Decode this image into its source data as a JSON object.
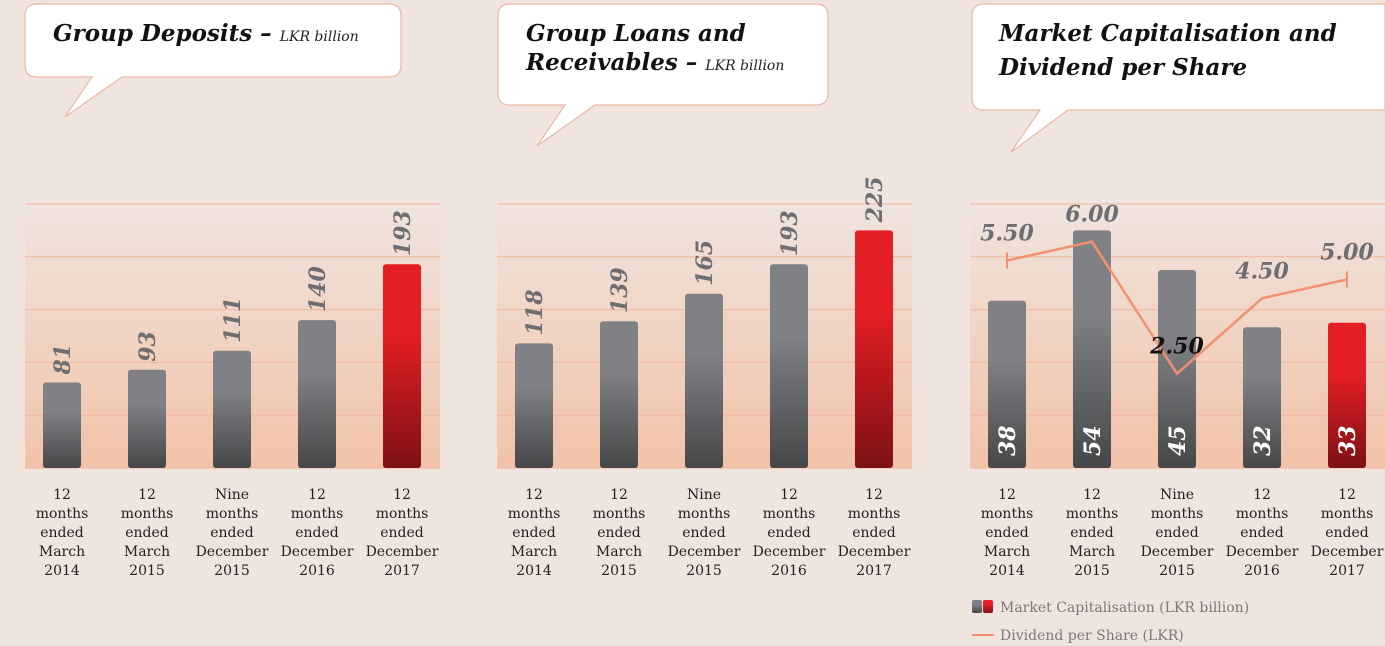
{
  "chart_data": [
    {
      "type": "bar",
      "title": [
        "Group Deposits –"
      ],
      "subtitle": "LKR billion",
      "categories": [
        [
          "12",
          "months",
          "ended",
          "March",
          "2014"
        ],
        [
          "12",
          "months",
          "ended",
          "March",
          "2015"
        ],
        [
          "Nine",
          "months",
          "ended",
          "December",
          "2015"
        ],
        [
          "12",
          "months",
          "ended",
          "December",
          "2016"
        ],
        [
          "12",
          "months",
          "ended",
          "December",
          "2017"
        ]
      ],
      "values": [
        81,
        93,
        111,
        140,
        193
      ],
      "colors": [
        "#808184",
        "#808184",
        "#808184",
        "#808184",
        "#e31e24"
      ],
      "ylim": [
        0,
        250
      ],
      "yticks": [
        0,
        50,
        100,
        150,
        200,
        250
      ],
      "grid": true
    },
    {
      "type": "bar",
      "title": [
        "Group Loans and",
        "Receivables –"
      ],
      "subtitle": "LKR billion",
      "categories": [
        [
          "12",
          "months",
          "ended",
          "March",
          "2014"
        ],
        [
          "12",
          "months",
          "ended",
          "March",
          "2015"
        ],
        [
          "Nine",
          "months",
          "ended",
          "December",
          "2015"
        ],
        [
          "12",
          "months",
          "ended",
          "December",
          "2016"
        ],
        [
          "12",
          "months",
          "ended",
          "December",
          "2017"
        ]
      ],
      "values": [
        118,
        139,
        165,
        193,
        225
      ],
      "colors": [
        "#808184",
        "#808184",
        "#808184",
        "#808184",
        "#e31e24"
      ],
      "ylim": [
        0,
        250
      ],
      "yticks": [
        0,
        50,
        100,
        150,
        200,
        250
      ],
      "grid": true
    },
    {
      "type": "bar_line",
      "title": [
        "Market Capitalisation and",
        "Dividend per Share"
      ],
      "categories": [
        [
          "12",
          "months",
          "ended",
          "March",
          "2014"
        ],
        [
          "12",
          "months",
          "ended",
          "March",
          "2015"
        ],
        [
          "Nine",
          "months",
          "ended",
          "December",
          "2015"
        ],
        [
          "12",
          "months",
          "ended",
          "December",
          "2016"
        ],
        [
          "12",
          "months",
          "ended",
          "December",
          "2017"
        ]
      ],
      "series": [
        {
          "name": "Market Capitalisation (LKR billion)",
          "type": "bar",
          "colors": [
            "#808184",
            "#808184",
            "#808184",
            "#808184",
            "#e31e24"
          ],
          "values": [
            38,
            54,
            45,
            32,
            33
          ]
        },
        {
          "name": "Dividend per Share (LKR)",
          "type": "line",
          "axis": "y2",
          "color": "#f0916f",
          "values": [
            5.5,
            6.0,
            2.5,
            4.5,
            5.0
          ],
          "value_labels": [
            "5.50",
            "6.00",
            "2.50",
            "4.50",
            "5.00"
          ],
          "value_label_colors": [
            "#6d6e71",
            "#6d6e71",
            "#111111",
            "#6d6e71",
            "#6d6e71"
          ]
        }
      ],
      "ylim": [
        0,
        60
      ],
      "yticks": [
        0,
        12,
        24,
        36,
        48,
        60
      ],
      "y2lim": [
        0,
        7
      ],
      "grid": true,
      "legend": "bottom-left"
    }
  ]
}
